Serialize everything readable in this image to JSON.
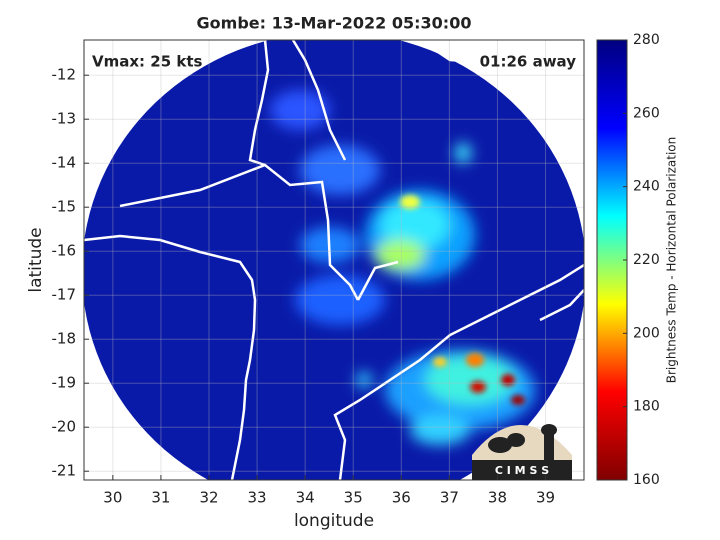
{
  "chart_data": {
    "type": "map",
    "title": "Gombe: 13-Mar-2022 05:30:00",
    "annotations": [
      "Vmax: 25 kts",
      "01:26 away"
    ],
    "x_label": "longitude",
    "y_label": "latitude",
    "xlim": [
      29.4,
      39.8
    ],
    "ylim": [
      -21.2,
      -11.2
    ],
    "xticks": [
      30,
      31,
      32,
      33,
      34,
      35,
      36,
      37,
      38,
      39
    ],
    "yticks": [
      -12,
      -13,
      -14,
      -15,
      -16,
      -17,
      -18,
      -19,
      -20,
      -21
    ],
    "grid": true,
    "colorbar": {
      "label": "Brightness Temp - Horizontal Polarization",
      "lim": [
        160,
        280
      ],
      "ticks": [
        160,
        180,
        200,
        220,
        240,
        260,
        280
      ],
      "colormap": "jet"
    },
    "logo_text": "C I M S S"
  }
}
